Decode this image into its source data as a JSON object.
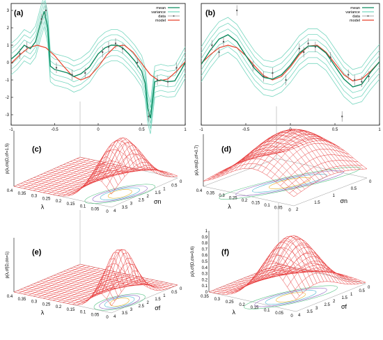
{
  "colors": {
    "mean": "#0b8a5e",
    "variance": "#76d6bf",
    "data": "#8a8a8a",
    "model": "#e8412a",
    "mesh": "#e83a3a"
  },
  "legend_labels": [
    "mean",
    "variance",
    "data",
    "model"
  ],
  "chart_data": [
    {
      "type": "line",
      "panel_label": "(a)",
      "x_ticks": [
        "-1",
        "-0.5",
        "0",
        "0.5",
        "1"
      ],
      "y_ticks": [
        "-3",
        "-2",
        "-1",
        "0",
        "1",
        "2",
        "3"
      ],
      "xlim": [
        -1,
        1
      ],
      "ylim": [
        -3.6,
        3.4
      ],
      "legend_position": "top-right",
      "grid": false,
      "series": [
        {
          "name": "mean",
          "x": [
            -1,
            -0.93,
            -0.85,
            -0.78,
            -0.72,
            -0.66,
            -0.62,
            -0.58,
            -0.55,
            -0.5,
            -0.42,
            -0.35,
            -0.28,
            -0.2,
            -0.1,
            0,
            0.08,
            0.15,
            0.22,
            0.28,
            0.35,
            0.42,
            0.5,
            0.54,
            0.57,
            0.6,
            0.65,
            0.72,
            0.8,
            0.88,
            0.95,
            1
          ],
          "y": [
            0.2,
            0.5,
            1.0,
            0.8,
            1.2,
            2.3,
            2.95,
            2.0,
            -0.2,
            -0.4,
            -0.5,
            -0.6,
            -0.8,
            -0.65,
            -0.25,
            0.5,
            0.85,
            1.0,
            1.0,
            0.85,
            0.5,
            0.1,
            -0.5,
            -1.2,
            -2.6,
            -3.2,
            -1.1,
            -1.0,
            -1.1,
            -1.05,
            -0.45,
            0.0
          ]
        },
        {
          "name": "model",
          "x": [
            -1,
            -0.9,
            -0.8,
            -0.7,
            -0.6,
            -0.5,
            -0.4,
            -0.3,
            -0.2,
            -0.1,
            0,
            0.1,
            0.2,
            0.3,
            0.4,
            0.5,
            0.6,
            0.7,
            0.8,
            0.9,
            1
          ],
          "y": [
            -0.05,
            0.45,
            0.85,
            1.0,
            0.85,
            0.4,
            -0.2,
            -0.75,
            -1.0,
            -0.8,
            -0.25,
            0.45,
            0.95,
            1.0,
            0.6,
            -0.05,
            -0.7,
            -1.05,
            -0.95,
            -0.5,
            0.05
          ]
        },
        {
          "name": "data",
          "x": [
            -0.9,
            -0.82,
            -0.65,
            -0.6,
            -0.48,
            -0.3,
            -0.15,
            0.05,
            0.12,
            0.2,
            0.28,
            0.45,
            0.58,
            0.68,
            0.8,
            0.9
          ],
          "y": [
            0.5,
            0.9,
            2.5,
            3.0,
            -0.3,
            -0.7,
            -0.6,
            0.6,
            0.9,
            1.1,
            0.8,
            0.0,
            -3.1,
            -1.0,
            -1.1,
            -0.3
          ],
          "err": [
            0.3,
            0.3,
            0.3,
            0.3,
            0.3,
            0.3,
            0.3,
            0.3,
            0.3,
            0.3,
            0.3,
            0.3,
            0.3,
            0.3,
            0.3,
            0.3
          ]
        }
      ],
      "variance_band": {
        "x_from": "mean",
        "half_width": 0.45
      }
    },
    {
      "type": "line",
      "panel_label": "(b)",
      "x_ticks": [
        "-1",
        "-0.5",
        "0",
        "0.5",
        "1"
      ],
      "y_ticks": [],
      "xlim": [
        -1,
        1
      ],
      "ylim": [
        -3.6,
        3.4
      ],
      "legend_position": "top-right",
      "grid": false,
      "series": [
        {
          "name": "mean",
          "x": [
            -1,
            -0.9,
            -0.8,
            -0.7,
            -0.6,
            -0.5,
            -0.4,
            -0.3,
            -0.2,
            -0.1,
            0,
            0.1,
            0.2,
            0.3,
            0.4,
            0.5,
            0.6,
            0.7,
            0.8,
            0.9,
            1
          ],
          "y": [
            -0.1,
            0.7,
            1.35,
            1.6,
            1.2,
            0.4,
            -0.35,
            -0.85,
            -0.95,
            -0.7,
            -0.15,
            0.55,
            0.95,
            0.95,
            0.55,
            -0.2,
            -0.95,
            -1.4,
            -1.25,
            -0.55,
            0.05
          ]
        },
        {
          "name": "model",
          "x": [
            -1,
            -0.9,
            -0.8,
            -0.7,
            -0.6,
            -0.5,
            -0.4,
            -0.3,
            -0.2,
            -0.1,
            0,
            0.1,
            0.2,
            0.3,
            0.4,
            0.5,
            0.6,
            0.7,
            0.8,
            0.9,
            1
          ],
          "y": [
            -0.05,
            0.45,
            0.85,
            1.0,
            0.85,
            0.4,
            -0.2,
            -0.75,
            -1.0,
            -0.8,
            -0.25,
            0.45,
            0.95,
            1.0,
            0.6,
            -0.05,
            -0.7,
            -1.05,
            -0.95,
            -0.5,
            0.05
          ]
        },
        {
          "name": "data",
          "x": [
            -0.88,
            -0.8,
            -0.75,
            -0.6,
            -0.42,
            -0.3,
            -0.2,
            -0.05,
            0.1,
            0.15,
            0.2,
            0.28,
            0.45,
            0.58,
            0.65,
            0.72,
            0.8,
            0.88
          ],
          "y": [
            1.0,
            0.6,
            1.2,
            3.0,
            -0.2,
            -0.8,
            -0.6,
            -1.0,
            0.8,
            0.6,
            1.1,
            0.9,
            0.3,
            -3.1,
            -0.7,
            -1.0,
            -1.1,
            -0.8
          ],
          "err": [
            0.3,
            0.3,
            0.3,
            0.3,
            0.3,
            0.3,
            0.3,
            0.3,
            0.3,
            0.3,
            0.3,
            0.3,
            0.3,
            0.3,
            0.3,
            0.3,
            0.3,
            0.3
          ]
        }
      ],
      "variance_band": {
        "x_from": "mean",
        "half_width": 0.5
      }
    },
    {
      "type": "surface",
      "panel_label": "(c)",
      "zlabel": "p(λ,σn|D,σf=1.5)",
      "xlabel": "λ",
      "ylabel": "σn",
      "x_ticks": [
        "0.4",
        "0.35",
        "0.3",
        "0.25",
        "0.2",
        "0.15",
        "0.1",
        "0.05",
        "0"
      ],
      "y_ticks": [
        "4",
        "3.5",
        "3",
        "2.5",
        "2",
        "1.5",
        "1",
        "0.5",
        "0"
      ],
      "peak": {
        "u": 0.85,
        "v": 0.35,
        "height": 1.0,
        "width_u": 0.13,
        "width_v": 0.28
      }
    },
    {
      "type": "surface",
      "panel_label": "(d)",
      "zlabel": "p(λ,σn|D,σf=0.7)",
      "xlabel": "λ",
      "ylabel": "σn",
      "x_ticks": [
        "0.4",
        "0.35",
        "0.3",
        "0.25",
        "0.2",
        "0.15",
        "0.1",
        "0.05",
        "0"
      ],
      "y_ticks": [
        "2",
        "1.5",
        "1",
        "0.5",
        "0"
      ],
      "peak": {
        "u": 0.55,
        "v": 0.5,
        "height": 1.0,
        "width_u": 0.3,
        "width_v": 0.45
      }
    },
    {
      "type": "surface",
      "panel_label": "(e)",
      "zlabel": "p(λ,σf|D,σn=1)",
      "xlabel": "λ",
      "ylabel": "σf",
      "x_ticks": [
        "0.4",
        "0.35",
        "0.3",
        "0.25",
        "0.2",
        "0.15",
        "0.1",
        "0.05",
        "0"
      ],
      "y_ticks": [
        "4",
        "3.5",
        "3",
        "2.5",
        "2",
        "1.5",
        "1",
        "0.5",
        "0"
      ],
      "peak": {
        "u": 0.88,
        "v": 0.3,
        "height": 1.0,
        "width_u": 0.09,
        "width_v": 0.2
      }
    },
    {
      "type": "surface",
      "panel_label": "(f)",
      "zlabel": "p(λ,σf|D,σn=0.6)",
      "xlabel": "λ",
      "ylabel": "σf",
      "x_ticks": [
        "0.35",
        "0.3",
        "0.25",
        "0.2",
        "0.15",
        "0.1",
        "0.05",
        "0"
      ],
      "y_ticks": [
        "4",
        "3.5",
        "3",
        "2.5",
        "2",
        "1.5",
        "1",
        "0.5",
        "0"
      ],
      "z_ticks": [
        "0",
        "0.1",
        "0.2",
        "0.3",
        "0.4",
        "0.5",
        "0.6",
        "0.7",
        "0.8",
        "0.9",
        "1"
      ],
      "peak": {
        "u": 0.7,
        "v": 0.3,
        "height": 1.0,
        "width_u": 0.2,
        "width_v": 0.3
      }
    }
  ]
}
